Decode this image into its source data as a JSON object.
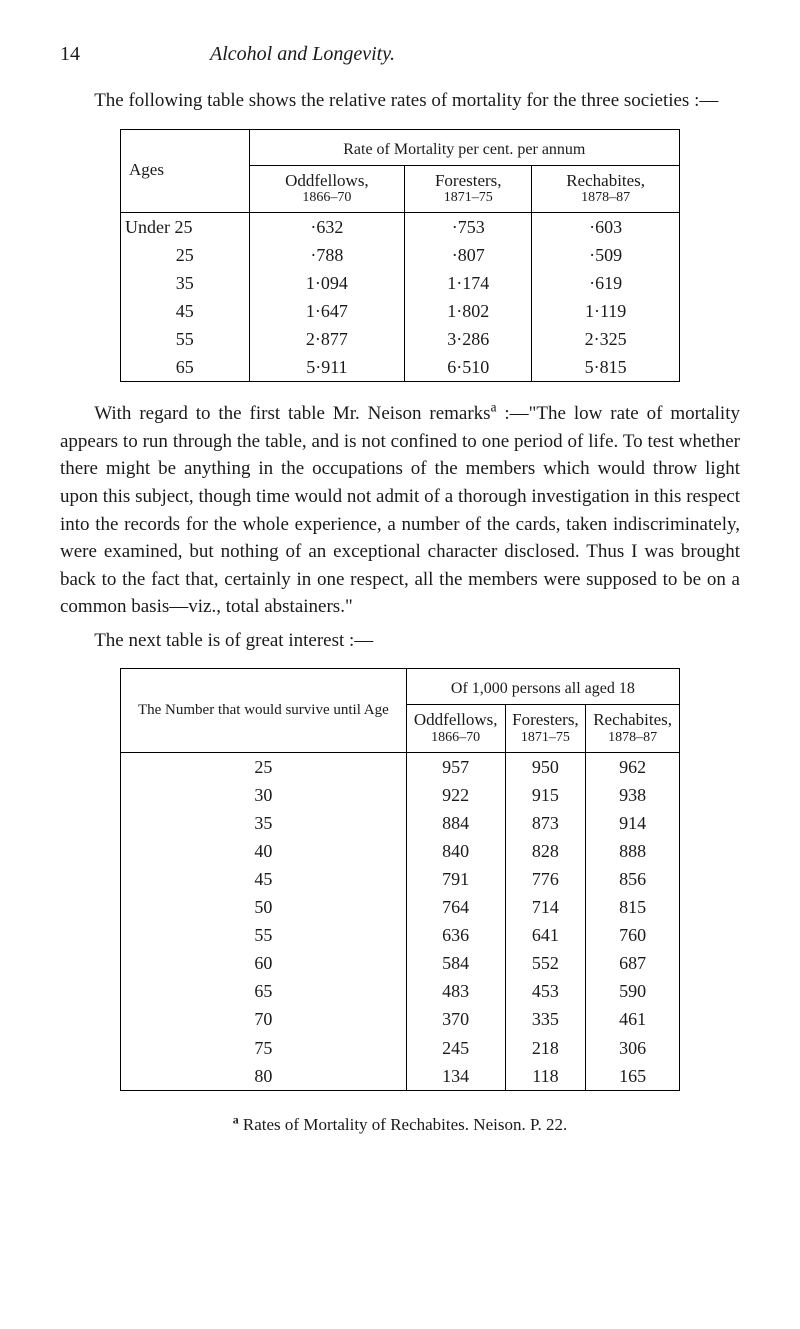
{
  "page_number": "14",
  "running_head": "Alcohol and Longevity.",
  "para1": "The following table shows the relative rates of mortality for the three societies :—",
  "table1": {
    "col_label_heading": "Ages",
    "span_heading": "Rate of Mortality per cent. per annum",
    "col_headings": [
      {
        "top": "Oddfellows,",
        "sub": "1866–70"
      },
      {
        "top": "Foresters,",
        "sub": "1871–75"
      },
      {
        "top": "Rechabites,",
        "sub": "1878–87"
      }
    ],
    "rows": [
      {
        "label": "Under 25",
        "vals": [
          "·632",
          "·753",
          "·603"
        ]
      },
      {
        "label": "25",
        "vals": [
          "·788",
          "·807",
          "·509"
        ]
      },
      {
        "label": "35",
        "vals": [
          "1·094",
          "1·174",
          "·619"
        ]
      },
      {
        "label": "45",
        "vals": [
          "1·647",
          "1·802",
          "1·119"
        ]
      },
      {
        "label": "55",
        "vals": [
          "2·877",
          "3·286",
          "2·325"
        ]
      },
      {
        "label": "65",
        "vals": [
          "5·911",
          "6·510",
          "5·815"
        ]
      }
    ]
  },
  "para2_prefix": "With regard to the first table Mr. Neison remarks",
  "para2_sup": "a",
  "para2_text": " :—\"The low rate of mortality appears to run through the table, and is not confined to one period of life. To test whether there might be anything in the occupations of the members which would throw light upon this subject, though time would not admit of a thorough investigation in this respect into the records for the whole experi­ence, a number of the cards, taken indiscriminately, were examined, but nothing of an exceptional character disclosed. Thus I was brought back to the fact that, certainly in one respect, all the members were supposed to be on a common basis—viz., total abstainers.\"",
  "para3": "The next table is of great interest :—",
  "table2": {
    "col_label_heading": "The Number that would survive until Age",
    "span_heading": "Of 1,000 persons all aged 18",
    "col_headings": [
      {
        "top": "Oddfellows,",
        "sub": "1866–70"
      },
      {
        "top": "Foresters,",
        "sub": "1871–75"
      },
      {
        "top": "Rechabites,",
        "sub": "1878–87"
      }
    ],
    "rows": [
      {
        "label": "25",
        "vals": [
          "957",
          "950",
          "962"
        ]
      },
      {
        "label": "30",
        "vals": [
          "922",
          "915",
          "938"
        ]
      },
      {
        "label": "35",
        "vals": [
          "884",
          "873",
          "914"
        ]
      },
      {
        "label": "40",
        "vals": [
          "840",
          "828",
          "888"
        ]
      },
      {
        "label": "45",
        "vals": [
          "791",
          "776",
          "856"
        ]
      },
      {
        "label": "50",
        "vals": [
          "764",
          "714",
          "815"
        ]
      },
      {
        "label": "55",
        "vals": [
          "636",
          "641",
          "760"
        ]
      },
      {
        "label": "60",
        "vals": [
          "584",
          "552",
          "687"
        ]
      },
      {
        "label": "65",
        "vals": [
          "483",
          "453",
          "590"
        ]
      },
      {
        "label": "70",
        "vals": [
          "370",
          "335",
          "461"
        ]
      },
      {
        "label": "75",
        "vals": [
          "245",
          "218",
          "306"
        ]
      },
      {
        "label": "80",
        "vals": [
          "134",
          "118",
          "165"
        ]
      }
    ]
  },
  "footnote_marker": "a",
  "footnote_text": " Rates of Mortality of Rechabites. Neison. P. 22."
}
